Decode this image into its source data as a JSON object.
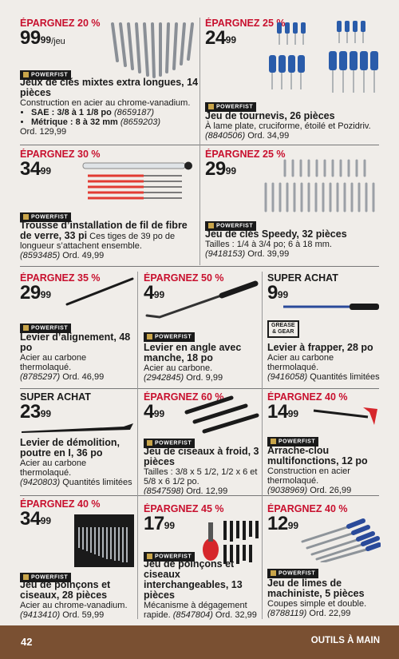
{
  "p1": {
    "saving": "ÉPARGNEZ 20 %",
    "dollars": "99",
    "cents": "99",
    "unit": "/jeu",
    "brand": "POWERFIST",
    "title": "Jeux de clés mixtes extra longues, 14 pièces",
    "desc": "Construction en acier au chrome-vanadium.",
    "b1_label": "SAE : 3/8 à 1 1/8 po",
    "b1_sku": "(8659187)",
    "b2_label": "Métrique : 8 à 32 mm",
    "b2_sku": "(8659203)",
    "ord": "Ord. 129,99"
  },
  "p2": {
    "saving": "ÉPARGNEZ 25 %",
    "dollars": "24",
    "cents": "99",
    "brand": "POWERFIST",
    "title": "Jeu de tournevis, 26 pièces",
    "desc": "À lame plate, cruciforme, étoilé et Pozidriv.",
    "sku": "(8840506)",
    "ord": "Ord. 34,99"
  },
  "p3": {
    "saving": "ÉPARGNEZ 30 %",
    "dollars": "34",
    "cents": "99",
    "brand": "POWERFIST",
    "title": "Trousse d’installation de fil de fibre de verre, 33 pi",
    "desc": "Ces tiges de 39 po de longueur s’attachent ensemble.",
    "sku": "(8593485)",
    "ord": "Ord. 49,99"
  },
  "p4": {
    "saving": "ÉPARGNEZ 25 %",
    "dollars": "29",
    "cents": "99",
    "brand": "POWERFIST",
    "title": "Jeu de clés Speedy, 32 pièces",
    "desc": "Tailles : 1/4 à 3/4 po; 6 à 18 mm.",
    "sku": "(9418153)",
    "ord": "Ord. 39,99"
  },
  "p5": {
    "saving": "ÉPARGNEZ 35 %",
    "dollars": "29",
    "cents": "99",
    "brand": "POWERFIST",
    "title": "Levier d’alignement, 48 po",
    "desc": "Acier au carbone thermolaqué.",
    "sku": "(8785297)",
    "ord": "Ord. 46,99"
  },
  "p6": {
    "saving": "ÉPARGNEZ 50 %",
    "dollars": "4",
    "cents": "99",
    "brand": "POWERFIST",
    "title": "Levier en angle avec manche, 18 po",
    "desc": "Acier au carbone.",
    "sku": "(2942845)",
    "ord": "Ord. 9,99"
  },
  "p7": {
    "saving": "SUPER ACHAT",
    "dollars": "9",
    "cents": "99",
    "brand_line1": "GREASE",
    "brand_line2": "& GEAR",
    "title": "Levier à frapper, 28 po",
    "desc": "Acier au carbone thermolaqué.",
    "sku": "(9416058)",
    "ord": "Quantités limitées"
  },
  "p8": {
    "saving": "SUPER ACHAT",
    "dollars": "23",
    "cents": "99",
    "title": "Levier de démolition, poutre en I, 36 po",
    "desc": "Acier au carbone thermolaqué.",
    "sku": "(9420803)",
    "ord": "Quantités limitées"
  },
  "p9": {
    "saving": "ÉPARGNEZ 60 %",
    "dollars": "4",
    "cents": "99",
    "brand": "POWERFIST",
    "title": "Jeu de ciseaux à froid, 3 pièces",
    "desc": "Tailles : 3/8 x 5 1/2, 1/2 x 6 et 5/8 x 6 1/2 po.",
    "sku": "(8547598)",
    "ord": "Ord. 12,99"
  },
  "p10": {
    "saving": "ÉPARGNEZ 40 %",
    "dollars": "14",
    "cents": "99",
    "brand": "POWERFIST",
    "title": "Arrache-clou multifonctions, 12 po",
    "desc": "Construction en acier thermolaqué.",
    "sku": "(9038969)",
    "ord": "Ord. 26,99"
  },
  "p11": {
    "saving": "ÉPARGNEZ 40 %",
    "dollars": "34",
    "cents": "99",
    "brand": "POWERFIST",
    "title": "Jeu de poinçons et ciseaux, 28 pièces",
    "desc": "Acier au chrome-vanadium.",
    "sku": "(9413410)",
    "ord": "Ord. 59,99"
  },
  "p12": {
    "saving": "ÉPARGNEZ 45 %",
    "dollars": "17",
    "cents": "99",
    "brand": "POWERFIST",
    "title": "Jeu de poinçons et ciseaux interchangeables, 13 pièces",
    "desc": "Mécanisme à dégagement rapide.",
    "sku": "(8547804)",
    "ord": "Ord. 32,99"
  },
  "p13": {
    "saving": "ÉPARGNEZ 40 %",
    "dollars": "12",
    "cents": "99",
    "brand": "POWERFIST",
    "title": "Jeu de limes de machiniste, 5 pièces",
    "desc": "Coupes simple et double.",
    "sku": "(8788119)",
    "ord": "Ord. 22,99"
  },
  "footer": {
    "page": "42",
    "section": "OUTILS À MAIN"
  },
  "colors": {
    "saving_red": "#c8102e",
    "footer_brown": "#7a5032",
    "background": "#f0ede9",
    "brand_gold": "#c9a54a"
  }
}
